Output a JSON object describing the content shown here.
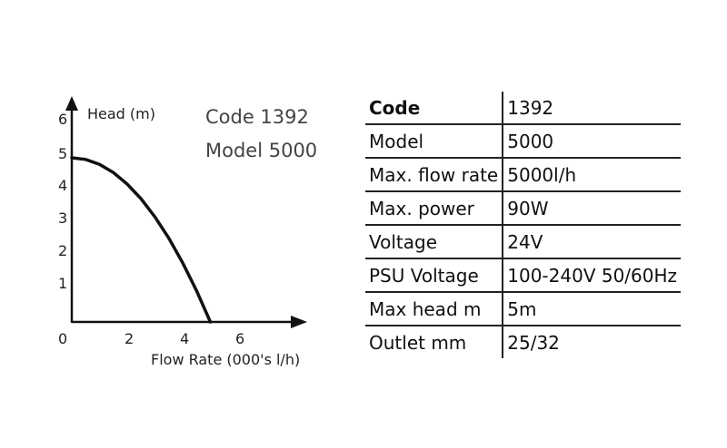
{
  "chart_data": {
    "type": "line",
    "ylabel": "Head (m)",
    "xlabel": "Flow Rate (000's l/h)",
    "x_ticks": [
      "0",
      "2",
      "4",
      "6"
    ],
    "y_ticks": [
      "1",
      "2",
      "3",
      "4",
      "5",
      "6"
    ],
    "xlim": [
      0,
      8
    ],
    "ylim": [
      0,
      6
    ],
    "series": [
      {
        "x": [
          0,
          0.5,
          1,
          1.5,
          2,
          2.5,
          3,
          3.5,
          4,
          4.5,
          5
        ],
        "y": [
          5,
          4.95,
          4.8,
          4.55,
          4.2,
          3.75,
          3.2,
          2.55,
          1.8,
          0.95,
          0
        ]
      }
    ],
    "annotations": [
      "Code 1392",
      "Model 5000"
    ]
  },
  "spec_table": {
    "rows": [
      {
        "label": "Code",
        "value": "1392"
      },
      {
        "label": "Model",
        "value": "5000"
      },
      {
        "label": "Max. flow rate",
        "value": "5000l/h"
      },
      {
        "label": "Max. power",
        "value": "90W"
      },
      {
        "label": "Voltage",
        "value": "24V"
      },
      {
        "label": "PSU Voltage",
        "value": "100-240V 50/60Hz"
      },
      {
        "label": "Max head m",
        "value": "5m"
      },
      {
        "label": "Outlet mm",
        "value": "25/32"
      }
    ]
  }
}
